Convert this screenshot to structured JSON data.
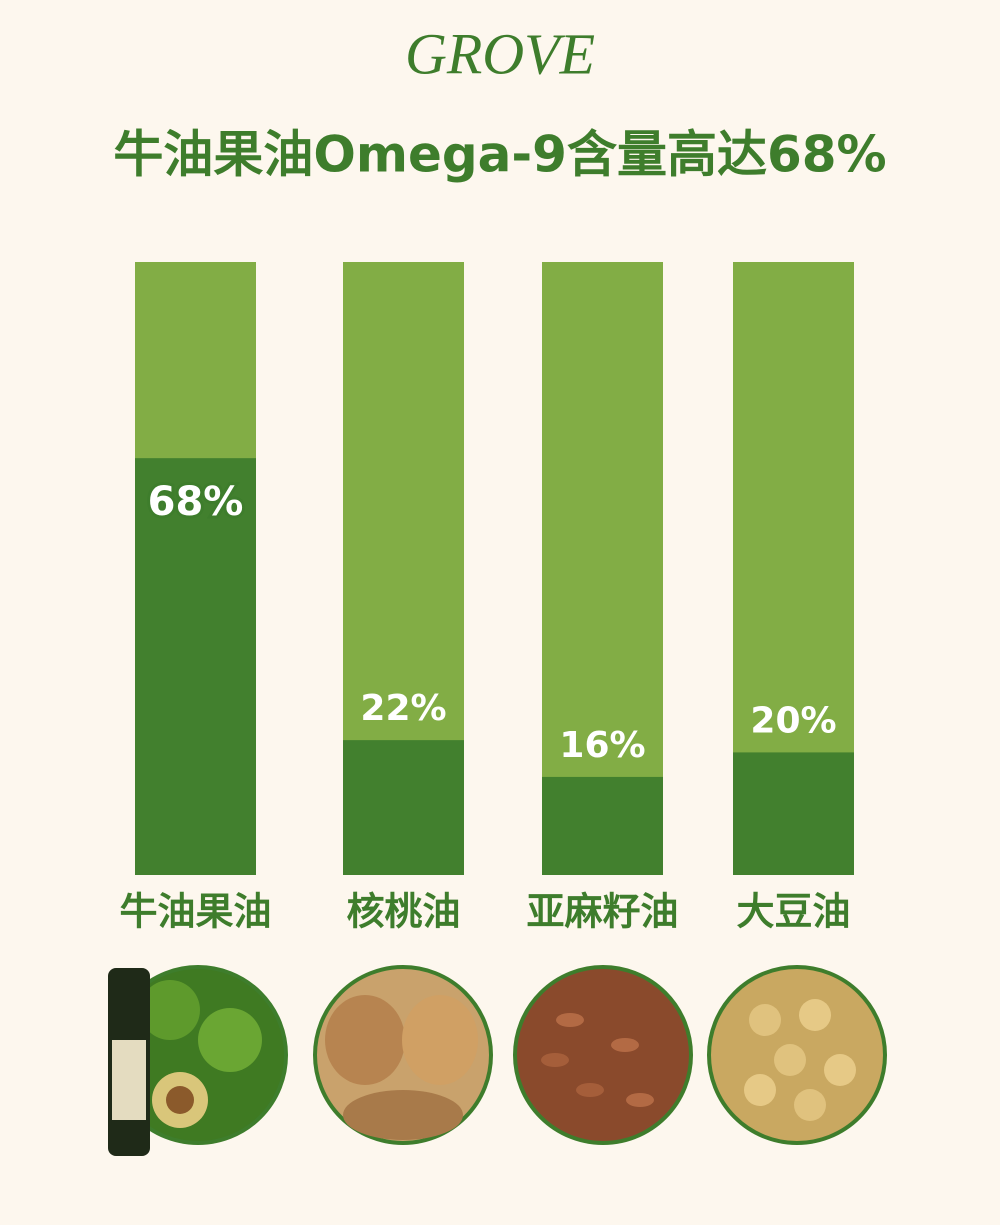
{
  "logo": "GROVE",
  "chart_data": {
    "type": "bar",
    "title": "牛油果油Omega-9含量高达68%",
    "categories": [
      "牛油果油",
      "核桃油",
      "亚麻籽油",
      "大豆油"
    ],
    "values": [
      68,
      22,
      16,
      20
    ],
    "value_labels": [
      "68%",
      "22%",
      "16%",
      "20%"
    ],
    "color": "#42802e",
    "ylim": [
      0,
      100
    ]
  }
}
